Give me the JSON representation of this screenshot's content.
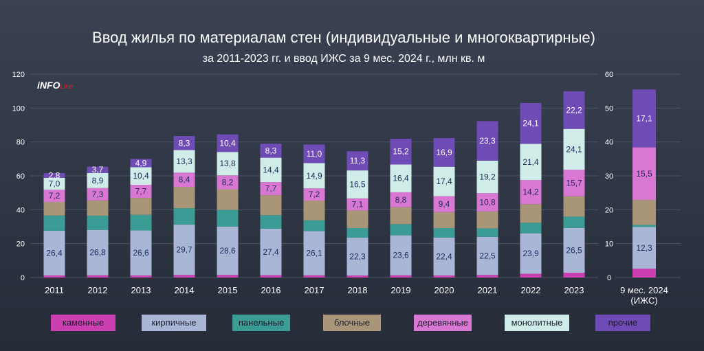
{
  "header": {
    "title": "Ввод жилья по материалам стен (индивидуальные и многоквартирные)",
    "subtitle": "за 2011-2023 гг. и ввод ИЖС за 9 мес. 2024 г., млн кв. м"
  },
  "logo": {
    "text_main": "iNFO",
    "text_accent": "Line"
  },
  "chart_data": [
    {
      "type": "bar",
      "stacked": true,
      "categories": [
        "2011",
        "2012",
        "2013",
        "2014",
        "2015",
        "2016",
        "2017",
        "2018",
        "2019",
        "2020",
        "2021",
        "2022",
        "2023"
      ],
      "ylim": [
        0,
        120
      ],
      "yticks": [
        0,
        20,
        40,
        60,
        80,
        100,
        120
      ],
      "series": [
        {
          "name": "каменные",
          "color": "#cc3fb1",
          "values": [
            1.2,
            1.3,
            1.2,
            1.5,
            1.5,
            1.4,
            1.3,
            1.2,
            1.3,
            1.2,
            1.5,
            2.2,
            2.8
          ],
          "labels": [
            "",
            "",
            "",
            "",
            "",
            "",
            "",
            "",
            "",
            "",
            "",
            "",
            ""
          ]
        },
        {
          "name": "кирпичные",
          "color": "#a9b6d6",
          "values": [
            26.4,
            26.8,
            26.6,
            29.7,
            28.6,
            27.4,
            26.1,
            22.3,
            23.6,
            22.4,
            22.5,
            23.9,
            26.5
          ],
          "labels": [
            "26,4",
            "26,8",
            "26,6",
            "29,7",
            "28,6",
            "27,4",
            "26,1",
            "22,3",
            "23,6",
            "22,4",
            "22,5",
            "23,9",
            "26,5"
          ]
        },
        {
          "name": "панельные",
          "color": "#3a9c95",
          "values": [
            9.0,
            8.4,
            9.2,
            9.7,
            9.8,
            8.0,
            6.4,
            5.7,
            6.6,
            5.6,
            5.0,
            6.2,
            6.6
          ],
          "labels": [
            "",
            "",
            "",
            "",
            "",
            "",
            "",
            "",
            "",
            "",
            "",
            "",
            ""
          ]
        },
        {
          "name": "блочные",
          "color": "#a99577",
          "values": [
            8.0,
            9.0,
            10.0,
            12.6,
            12.2,
            11.8,
            11.6,
            10.4,
            10.0,
            9.4,
            10.0,
            11.0,
            12.0
          ],
          "labels": [
            "",
            "",
            "",
            "",
            "",
            "",
            "",
            "",
            "",
            "",
            "",
            "",
            ""
          ]
        },
        {
          "name": "деревянные",
          "color": "#d878d2",
          "values": [
            7.2,
            7.3,
            7.7,
            8.4,
            8.2,
            7.7,
            7.2,
            7.1,
            8.8,
            9.4,
            10.8,
            14.2,
            15.7
          ],
          "labels": [
            "7,2",
            "7,3",
            "7,7",
            "8,4",
            "8,2",
            "7,7",
            "7,2",
            "7,1",
            "8,8",
            "9,4",
            "10,8",
            "14,2",
            "15,7"
          ]
        },
        {
          "name": "монолитные",
          "color": "#cfece8",
          "values": [
            7.0,
            8.9,
            10.4,
            13.3,
            13.8,
            14.4,
            14.9,
            16.5,
            16.4,
            17.4,
            19.2,
            21.4,
            24.1
          ],
          "labels": [
            "7,0",
            "8,9",
            "10,4",
            "13,3",
            "13,8",
            "14,4",
            "14,9",
            "16,5",
            "16,4",
            "17,4",
            "19,2",
            "21,4",
            "24,1"
          ]
        },
        {
          "name": "прочие",
          "color": "#6f4bb5",
          "values": [
            2.8,
            3.7,
            4.9,
            8.3,
            10.4,
            8.3,
            11.0,
            11.3,
            15.2,
            16.9,
            23.3,
            24.1,
            22.2
          ],
          "labels": [
            "2,8",
            "3,7",
            "4,9",
            "8,3",
            "10,4",
            "8,3",
            "11,0",
            "11,3",
            "15,2",
            "16,9",
            "23,3",
            "24,1",
            "22,2"
          ]
        }
      ]
    },
    {
      "type": "bar",
      "stacked": true,
      "categories": [
        "9 мес. 2024\n(ИЖС)"
      ],
      "ylim": [
        0,
        60
      ],
      "yticks": [
        0,
        10,
        20,
        30,
        40,
        50,
        60
      ],
      "series": [
        {
          "name": "каменные",
          "values": [
            2.6
          ],
          "labels": [
            ""
          ]
        },
        {
          "name": "кирпичные",
          "values": [
            12.3
          ],
          "labels": [
            "12,3"
          ]
        },
        {
          "name": "панельные",
          "values": [
            0.6
          ],
          "labels": [
            ""
          ]
        },
        {
          "name": "блочные",
          "values": [
            7.4
          ],
          "labels": [
            ""
          ]
        },
        {
          "name": "деревянные",
          "values": [
            15.5
          ],
          "labels": [
            "15,5"
          ]
        },
        {
          "name": "монолитные",
          "values": [
            0.0
          ],
          "labels": [
            ""
          ]
        },
        {
          "name": "прочие",
          "values": [
            17.1
          ],
          "labels": [
            "17,1"
          ]
        }
      ]
    }
  ],
  "legend": [
    "каменные",
    "кирпичные",
    "панельные",
    "блочные",
    "деревянные",
    "монолитные",
    "прочие"
  ]
}
